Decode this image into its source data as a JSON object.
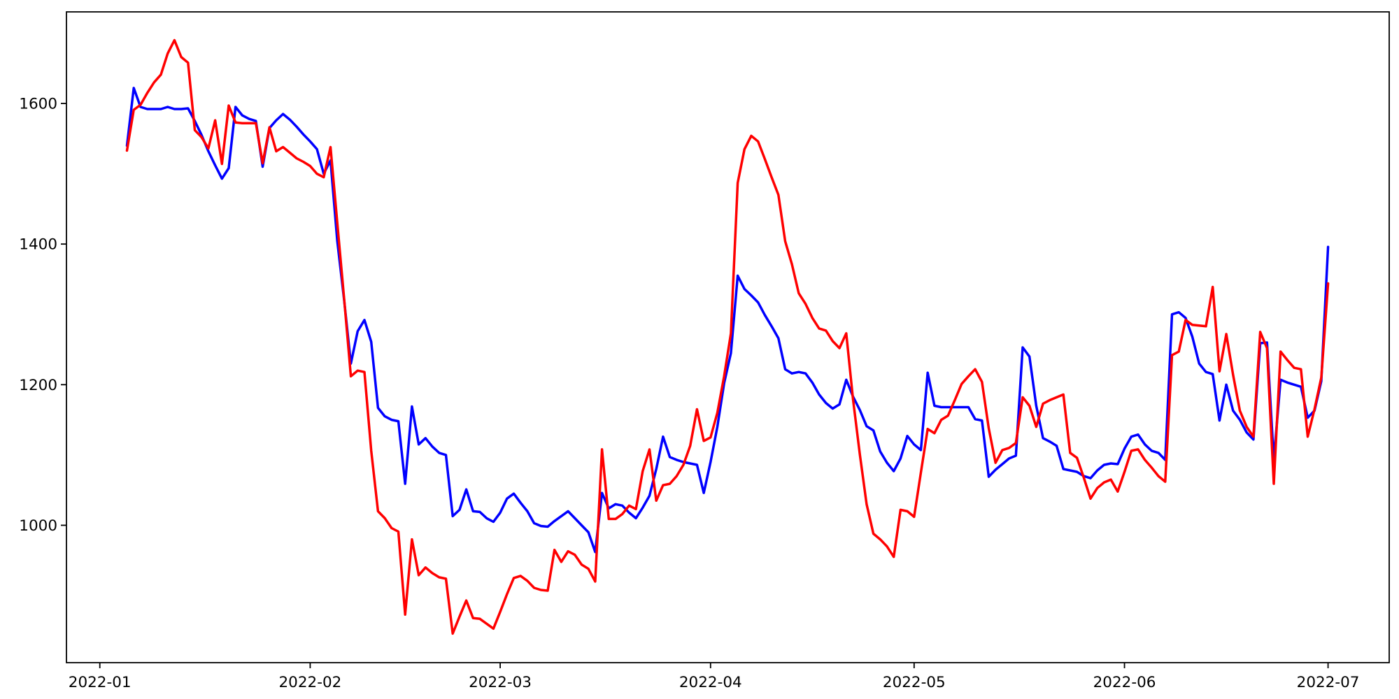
{
  "chart_data": {
    "type": "line",
    "title": "",
    "xlabel": "",
    "ylabel": "",
    "grid": false,
    "legend_position": "none",
    "background_color": "#ffffff",
    "axis_color": "#000000",
    "x_axis": {
      "tick_labels": [
        "2022-01",
        "2022-02",
        "2022-03",
        "2022-04",
        "2022-05",
        "2022-06",
        "2022-07"
      ],
      "range_dates": [
        "2022-01-01",
        "2022-07-01"
      ]
    },
    "y_axis": {
      "tick_labels": [
        "1000",
        "1200",
        "1400",
        "1600"
      ],
      "tick_values": [
        1000,
        1200,
        1400,
        1600
      ],
      "ylim": [
        805,
        1730
      ]
    },
    "start_date": "2022-01-05",
    "frequency": "daily",
    "series": [
      {
        "name": "blue-series",
        "color": "#0000ff",
        "values": [
          1540,
          1622,
          1595,
          1592,
          1592,
          1592,
          1595,
          1592,
          1592,
          1593,
          1575,
          1555,
          1532,
          1512,
          1493,
          1508,
          1595,
          1583,
          1578,
          1575,
          1510,
          1565,
          1576,
          1585,
          1577,
          1567,
          1556,
          1546,
          1535,
          1500,
          1519,
          1404,
          1321,
          1230,
          1276,
          1292,
          1261,
          1167,
          1155,
          1150,
          1148,
          1059,
          1169,
          1115,
          1124,
          1112,
          1103,
          1100,
          1013,
          1022,
          1051,
          1020,
          1019,
          1010,
          1005,
          1018,
          1038,
          1045,
          1032,
          1020,
          1003,
          999,
          998,
          1006,
          1013,
          1020,
          1010,
          1000,
          990,
          962,
          1046,
          1024,
          1030,
          1028,
          1018,
          1010,
          1025,
          1042,
          1080,
          1126,
          1097,
          1093,
          1090,
          1088,
          1086,
          1046,
          1090,
          1140,
          1202,
          1245,
          1355,
          1336,
          1327,
          1317,
          1299,
          1283,
          1266,
          1222,
          1216,
          1218,
          1216,
          1203,
          1186,
          1174,
          1166,
          1172,
          1207,
          1183,
          1164,
          1141,
          1135,
          1105,
          1089,
          1077,
          1095,
          1127,
          1115,
          1107,
          1217,
          1170,
          1168,
          1168,
          1168,
          1168,
          1168,
          1151,
          1149,
          1069,
          1079,
          1087,
          1095,
          1099,
          1253,
          1240,
          1170,
          1124,
          1119,
          1113,
          1080,
          1078,
          1076,
          1070,
          1067,
          1078,
          1086,
          1088,
          1087,
          1109,
          1126,
          1129,
          1115,
          1106,
          1103,
          1093,
          1300,
          1303,
          1295,
          1268,
          1230,
          1218,
          1215,
          1149,
          1200,
          1163,
          1150,
          1132,
          1122,
          1259,
          1260,
          1093,
          1207,
          1203,
          1200,
          1197,
          1153,
          1163,
          1205,
          1396
        ]
      },
      {
        "name": "red-series",
        "color": "#ff0000",
        "values": [
          1533,
          1591,
          1598,
          1615,
          1630,
          1641,
          1671,
          1690,
          1666,
          1658,
          1562,
          1552,
          1536,
          1576,
          1514,
          1597,
          1573,
          1572,
          1572,
          1572,
          1515,
          1566,
          1532,
          1538,
          1530,
          1522,
          1517,
          1511,
          1500,
          1495,
          1538,
          1430,
          1323,
          1212,
          1220,
          1218,
          1106,
          1020,
          1010,
          996,
          991,
          873,
          980,
          929,
          940,
          932,
          926,
          924,
          846,
          870,
          893,
          868,
          867,
          860,
          853,
          877,
          902,
          925,
          928,
          921,
          911,
          908,
          907,
          965,
          948,
          963,
          958,
          944,
          938,
          920,
          1108,
          1009,
          1009,
          1016,
          1028,
          1023,
          1077,
          1108,
          1035,
          1057,
          1059,
          1070,
          1086,
          1113,
          1165,
          1120,
          1125,
          1160,
          1212,
          1273,
          1487,
          1535,
          1554,
          1546,
          1521,
          1495,
          1470,
          1404,
          1371,
          1330,
          1315,
          1295,
          1280,
          1277,
          1262,
          1252,
          1273,
          1179,
          1101,
          1030,
          988,
          980,
          970,
          955,
          1022,
          1020,
          1012,
          1075,
          1137,
          1131,
          1150,
          1156,
          1178,
          1201,
          1212,
          1222,
          1204,
          1138,
          1089,
          1107,
          1110,
          1117,
          1182,
          1170,
          1140,
          1173,
          1178,
          1182,
          1186,
          1103,
          1096,
          1068,
          1038,
          1053,
          1061,
          1065,
          1048,
          1076,
          1106,
          1108,
          1093,
          1082,
          1070,
          1062,
          1242,
          1247,
          1292,
          1285,
          1284,
          1283,
          1339,
          1219,
          1272,
          1214,
          1163,
          1140,
          1126,
          1275,
          1252,
          1059,
          1247,
          1235,
          1224,
          1222,
          1126,
          1165,
          1210,
          1344
        ]
      }
    ]
  }
}
